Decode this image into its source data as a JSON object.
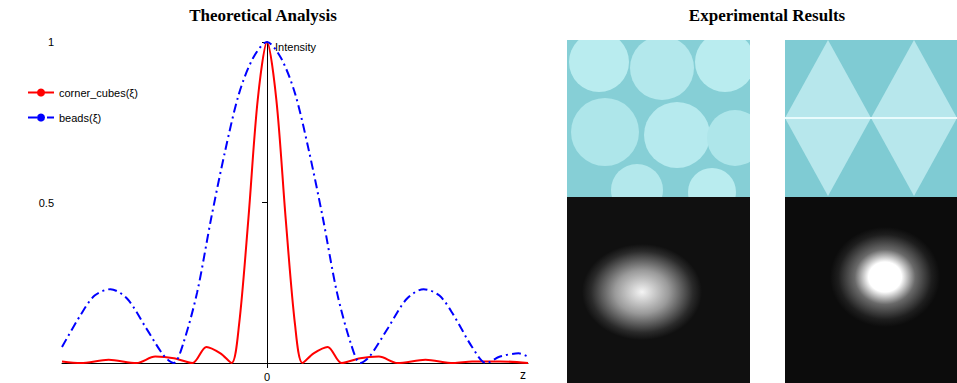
{
  "chart_data": {
    "type": "line",
    "title": "Theoretical Analysis",
    "x_label": "z",
    "y_label": "Intensity",
    "xlim": [
      -2.2,
      2.8
    ],
    "xticks": [
      0
    ],
    "ylim": [
      0,
      1
    ],
    "yticks": [
      0.5,
      1
    ],
    "grid": false,
    "legend": "upper left",
    "series": [
      {
        "name": "corner_cubes(ξ)",
        "color": "#ff0000",
        "line_style": "solid",
        "marker": "none",
        "x": [
          -2.2,
          -2.0,
          -1.7,
          -1.4,
          -1.2,
          -1.0,
          -0.8,
          -0.65,
          -0.5,
          -0.38,
          -0.3,
          -0.2,
          -0.1,
          0,
          0.1,
          0.2,
          0.3,
          0.38,
          0.5,
          0.65,
          0.8,
          1.0,
          1.2,
          1.4,
          1.7,
          2.0,
          2.2,
          2.5,
          2.8
        ],
        "values": [
          0.005,
          0,
          0.01,
          0,
          0.02,
          0.015,
          0,
          0.05,
          0.03,
          0,
          0.12,
          0.45,
          0.82,
          1,
          0.82,
          0.45,
          0.12,
          0,
          0.03,
          0.05,
          0,
          0.015,
          0.02,
          0,
          0.01,
          0,
          0.005,
          0.005,
          0
        ]
      },
      {
        "name": "beads(ξ)",
        "color": "#0000ff",
        "line_style": "dashdot",
        "marker": "none",
        "x": [
          -2.2,
          -2.0,
          -1.85,
          -1.68,
          -1.5,
          -1.3,
          -1.1,
          -1.0,
          -0.9,
          -0.75,
          -0.6,
          -0.45,
          -0.3,
          -0.15,
          0,
          0.15,
          0.3,
          0.45,
          0.6,
          0.75,
          0.9,
          1.0,
          1.1,
          1.3,
          1.5,
          1.68,
          1.85,
          2.0,
          2.2,
          2.35,
          2.5,
          2.7,
          2.8
        ],
        "values": [
          0.05,
          0.15,
          0.21,
          0.23,
          0.2,
          0.11,
          0.02,
          0,
          0.06,
          0.22,
          0.45,
          0.66,
          0.84,
          0.95,
          1,
          0.95,
          0.84,
          0.66,
          0.45,
          0.22,
          0.06,
          0,
          0.02,
          0.11,
          0.2,
          0.23,
          0.21,
          0.15,
          0.05,
          0,
          0.02,
          0.03,
          0.02
        ]
      }
    ]
  },
  "figure": {
    "right_panel_title": "Experimental Results"
  }
}
